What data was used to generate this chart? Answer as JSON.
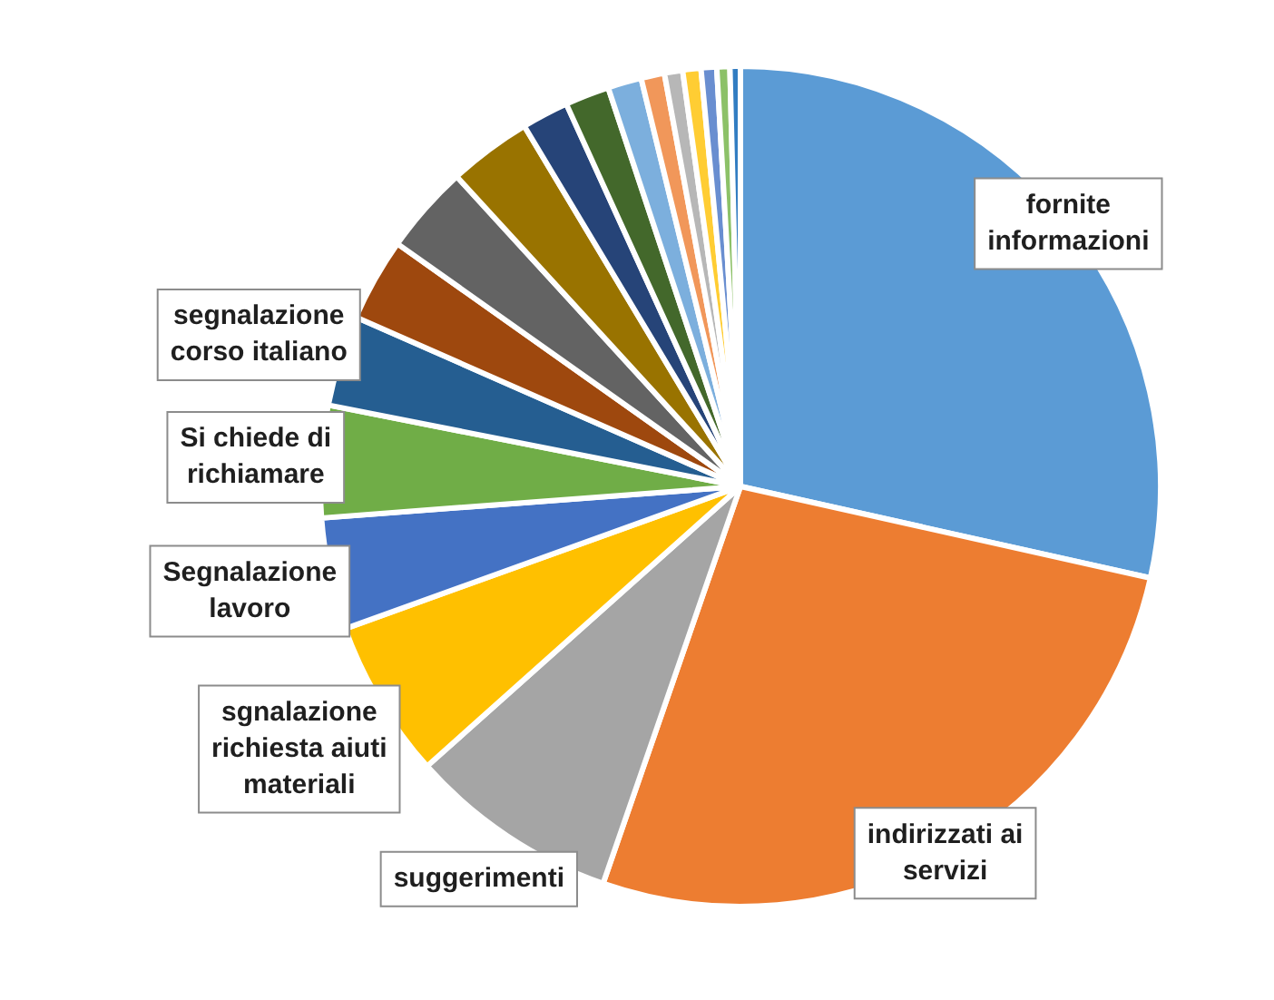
{
  "chart_data": {
    "type": "pie",
    "categories": [
      "fornite informazioni",
      "indirizzati ai servizi",
      "suggerimenti",
      "sgnalazione richiesta aiuti materiali",
      "Segnalazione lavoro",
      "Si chiede di richiamare",
      "segnalazione corso italiano",
      null,
      null,
      null,
      null,
      null,
      null,
      null,
      null,
      null,
      null,
      null,
      null
    ],
    "values": [
      28.5,
      26.8,
      8.1,
      6.1,
      4.3,
      4.3,
      3.5,
      3.2,
      3.4,
      3.2,
      1.8,
      1.7,
      1.3,
      0.9,
      0.7,
      0.7,
      0.6,
      0.5,
      0.4
    ],
    "colors": [
      "#5b9bd5",
      "#ed7d31",
      "#a5a5a5",
      "#ffc000",
      "#4472c4",
      "#70ad47",
      "#255e91",
      "#9e480e",
      "#636363",
      "#997300",
      "#264478",
      "#43682b",
      "#7cafdd",
      "#f1975a",
      "#b7b7b7",
      "#ffcd33",
      "#698ed0",
      "#8cc168",
      "#327dc2"
    ],
    "legend": false
  }
}
